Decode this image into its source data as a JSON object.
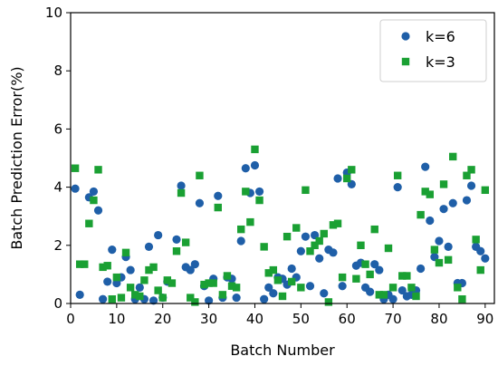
{
  "chart_data": {
    "type": "scatter",
    "xlabel": "Batch Number",
    "ylabel": "Batch Prediction Error(%)",
    "xlim": [
      0,
      92
    ],
    "ylim": [
      0,
      10
    ],
    "x_ticks": [
      0,
      10,
      20,
      30,
      40,
      50,
      60,
      70,
      80,
      90
    ],
    "y_ticks": [
      0,
      2,
      4,
      6,
      8,
      10
    ],
    "grid": false,
    "legend_position": "top-right",
    "series": [
      {
        "name": "k=6",
        "color": "#1f5fa8",
        "marker": "circle",
        "points": [
          [
            1,
            3.95
          ],
          [
            2,
            0.3
          ],
          [
            4,
            3.65
          ],
          [
            5,
            3.85
          ],
          [
            6,
            3.2
          ],
          [
            7,
            0.15
          ],
          [
            8,
            0.75
          ],
          [
            9,
            1.85
          ],
          [
            10,
            0.7
          ],
          [
            11,
            0.9
          ],
          [
            12,
            1.6
          ],
          [
            13,
            1.15
          ],
          [
            14,
            0.15
          ],
          [
            15,
            0.55
          ],
          [
            16,
            0.15
          ],
          [
            17,
            1.95
          ],
          [
            18,
            0.1
          ],
          [
            19,
            2.35
          ],
          [
            20,
            0.2
          ],
          [
            21,
            0.75
          ],
          [
            23,
            2.2
          ],
          [
            24,
            4.05
          ],
          [
            25,
            1.25
          ],
          [
            26,
            1.15
          ],
          [
            27,
            1.35
          ],
          [
            28,
            3.45
          ],
          [
            29,
            0.6
          ],
          [
            30,
            0.1
          ],
          [
            31,
            0.85
          ],
          [
            32,
            3.7
          ],
          [
            33,
            0.2
          ],
          [
            34,
            0.9
          ],
          [
            35,
            0.85
          ],
          [
            36,
            0.2
          ],
          [
            37,
            2.15
          ],
          [
            38,
            4.65
          ],
          [
            39,
            3.8
          ],
          [
            40,
            4.75
          ],
          [
            41,
            3.85
          ],
          [
            42,
            0.15
          ],
          [
            43,
            0.55
          ],
          [
            44,
            0.35
          ],
          [
            45,
            0.9
          ],
          [
            46,
            0.85
          ],
          [
            47,
            0.65
          ],
          [
            48,
            1.2
          ],
          [
            49,
            0.9
          ],
          [
            50,
            1.8
          ],
          [
            51,
            2.3
          ],
          [
            52,
            0.6
          ],
          [
            53,
            2.35
          ],
          [
            54,
            1.55
          ],
          [
            55,
            0.35
          ],
          [
            56,
            1.85
          ],
          [
            57,
            1.75
          ],
          [
            58,
            4.3
          ],
          [
            59,
            0.6
          ],
          [
            60,
            4.5
          ],
          [
            61,
            4.1
          ],
          [
            62,
            1.3
          ],
          [
            63,
            1.4
          ],
          [
            64,
            0.55
          ],
          [
            65,
            0.4
          ],
          [
            66,
            1.35
          ],
          [
            67,
            1.15
          ],
          [
            68,
            0.15
          ],
          [
            69,
            0.3
          ],
          [
            70,
            0.15
          ],
          [
            71,
            4.0
          ],
          [
            72,
            0.45
          ],
          [
            73,
            0.25
          ],
          [
            74,
            0.3
          ],
          [
            75,
            0.45
          ],
          [
            76,
            1.2
          ],
          [
            77,
            4.7
          ],
          [
            78,
            2.85
          ],
          [
            79,
            1.6
          ],
          [
            80,
            2.15
          ],
          [
            81,
            3.25
          ],
          [
            82,
            1.95
          ],
          [
            83,
            3.45
          ],
          [
            84,
            0.7
          ],
          [
            85,
            0.7
          ],
          [
            86,
            3.55
          ],
          [
            87,
            4.05
          ],
          [
            88,
            1.95
          ],
          [
            89,
            1.8
          ],
          [
            90,
            1.55
          ]
        ]
      },
      {
        "name": "k=3",
        "color": "#1aa033",
        "marker": "square",
        "points": [
          [
            1,
            4.65
          ],
          [
            2,
            1.35
          ],
          [
            3,
            1.35
          ],
          [
            4,
            2.75
          ],
          [
            5,
            3.55
          ],
          [
            6,
            4.6
          ],
          [
            7,
            1.25
          ],
          [
            8,
            1.3
          ],
          [
            9,
            0.15
          ],
          [
            10,
            0.9
          ],
          [
            11,
            0.2
          ],
          [
            12,
            1.75
          ],
          [
            13,
            0.55
          ],
          [
            14,
            0.3
          ],
          [
            15,
            0.25
          ],
          [
            16,
            0.8
          ],
          [
            17,
            1.15
          ],
          [
            18,
            1.25
          ],
          [
            19,
            0.45
          ],
          [
            20,
            0.2
          ],
          [
            21,
            0.8
          ],
          [
            22,
            0.7
          ],
          [
            23,
            1.8
          ],
          [
            24,
            3.8
          ],
          [
            25,
            2.1
          ],
          [
            26,
            0.2
          ],
          [
            27,
            0.05
          ],
          [
            28,
            4.4
          ],
          [
            29,
            0.65
          ],
          [
            30,
            0.7
          ],
          [
            31,
            0.7
          ],
          [
            32,
            3.3
          ],
          [
            33,
            0.3
          ],
          [
            34,
            0.95
          ],
          [
            35,
            0.6
          ],
          [
            36,
            0.55
          ],
          [
            37,
            2.55
          ],
          [
            38,
            3.85
          ],
          [
            39,
            2.8
          ],
          [
            40,
            5.3
          ],
          [
            41,
            3.55
          ],
          [
            42,
            1.95
          ],
          [
            43,
            1.05
          ],
          [
            44,
            1.15
          ],
          [
            45,
            0.8
          ],
          [
            46,
            0.25
          ],
          [
            47,
            2.3
          ],
          [
            48,
            0.75
          ],
          [
            49,
            2.6
          ],
          [
            50,
            0.55
          ],
          [
            51,
            3.9
          ],
          [
            52,
            1.8
          ],
          [
            53,
            2.0
          ],
          [
            54,
            2.15
          ],
          [
            55,
            2.4
          ],
          [
            56,
            0.05
          ],
          [
            57,
            2.7
          ],
          [
            58,
            2.75
          ],
          [
            59,
            0.9
          ],
          [
            60,
            4.3
          ],
          [
            61,
            4.6
          ],
          [
            62,
            0.85
          ],
          [
            63,
            2.0
          ],
          [
            64,
            1.35
          ],
          [
            65,
            1.0
          ],
          [
            66,
            2.55
          ],
          [
            67,
            0.3
          ],
          [
            68,
            0.3
          ],
          [
            69,
            1.9
          ],
          [
            70,
            0.55
          ],
          [
            71,
            4.4
          ],
          [
            72,
            0.95
          ],
          [
            73,
            0.95
          ],
          [
            74,
            0.55
          ],
          [
            75,
            0.25
          ],
          [
            76,
            3.05
          ],
          [
            77,
            3.85
          ],
          [
            78,
            3.75
          ],
          [
            79,
            1.85
          ],
          [
            80,
            1.4
          ],
          [
            81,
            4.1
          ],
          [
            82,
            1.5
          ],
          [
            83,
            5.05
          ],
          [
            84,
            0.55
          ],
          [
            85,
            0.15
          ],
          [
            86,
            4.4
          ],
          [
            87,
            4.6
          ],
          [
            88,
            2.2
          ],
          [
            89,
            1.15
          ],
          [
            90,
            3.9
          ]
        ]
      }
    ]
  }
}
